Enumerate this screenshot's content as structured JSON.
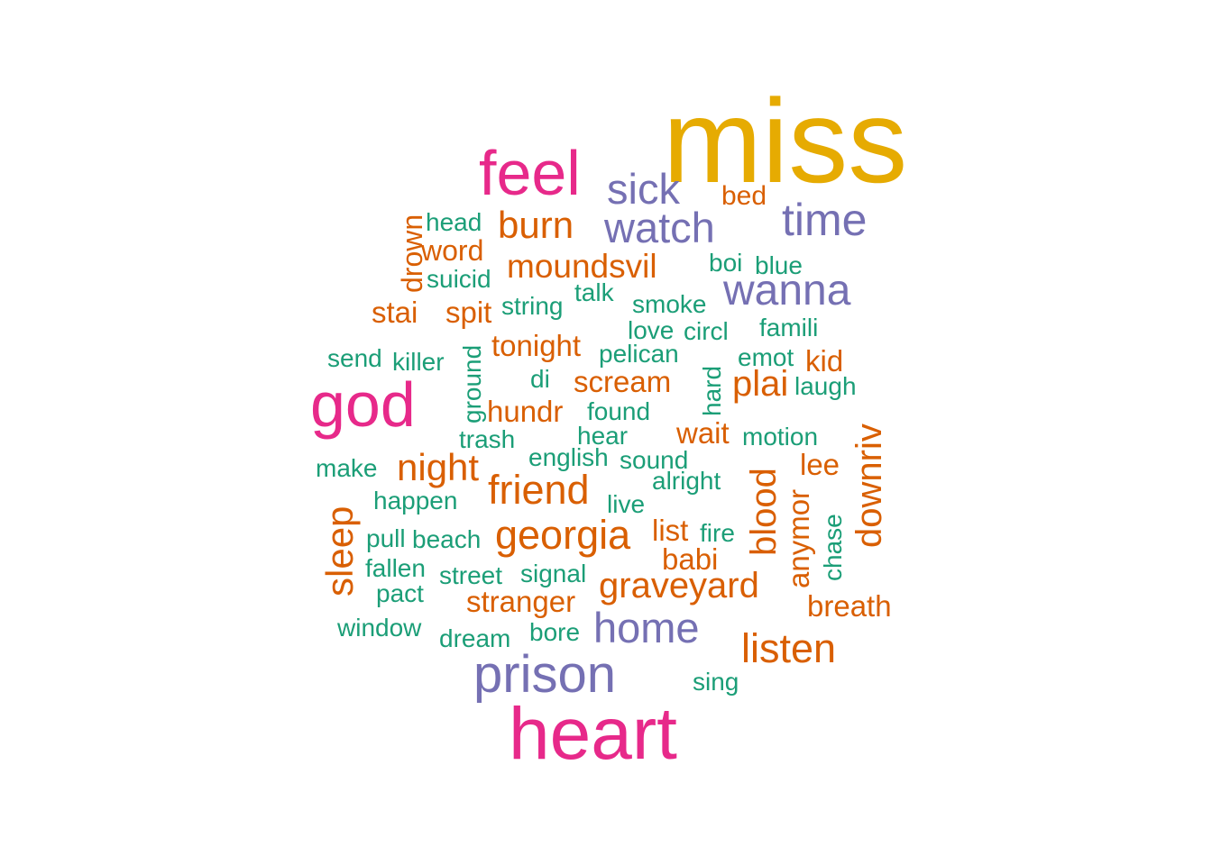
{
  "colors": {
    "gold": "#E6AB02",
    "pink": "#E7298A",
    "purple": "#7570B3",
    "orange": "#D95F02",
    "green": "#1B9E77"
  },
  "words": [
    {
      "text": "miss",
      "color": "gold"
    },
    {
      "text": "heart",
      "color": "pink"
    },
    {
      "text": "feel",
      "color": "pink"
    },
    {
      "text": "god",
      "color": "pink"
    },
    {
      "text": "prison",
      "color": "purple"
    },
    {
      "text": "home",
      "color": "purple"
    },
    {
      "text": "sick",
      "color": "purple"
    },
    {
      "text": "watch",
      "color": "purple"
    },
    {
      "text": "time",
      "color": "purple"
    },
    {
      "text": "wanna",
      "color": "purple"
    },
    {
      "text": "bed",
      "color": "orange"
    },
    {
      "text": "burn",
      "color": "orange"
    },
    {
      "text": "moundsvil",
      "color": "orange"
    },
    {
      "text": "drown",
      "color": "orange"
    },
    {
      "text": "word",
      "color": "orange"
    },
    {
      "text": "stai",
      "color": "orange"
    },
    {
      "text": "spit",
      "color": "orange"
    },
    {
      "text": "tonight",
      "color": "orange"
    },
    {
      "text": "scream",
      "color": "orange"
    },
    {
      "text": "hundr",
      "color": "orange"
    },
    {
      "text": "plai",
      "color": "orange"
    },
    {
      "text": "kid",
      "color": "orange"
    },
    {
      "text": "wait",
      "color": "orange"
    },
    {
      "text": "night",
      "color": "orange"
    },
    {
      "text": "friend",
      "color": "orange"
    },
    {
      "text": "georgia",
      "color": "orange"
    },
    {
      "text": "sleep",
      "color": "orange"
    },
    {
      "text": "blood",
      "color": "orange"
    },
    {
      "text": "anymor",
      "color": "orange"
    },
    {
      "text": "downriv",
      "color": "orange"
    },
    {
      "text": "lee",
      "color": "orange"
    },
    {
      "text": "list",
      "color": "orange"
    },
    {
      "text": "babi",
      "color": "orange"
    },
    {
      "text": "graveyard",
      "color": "orange"
    },
    {
      "text": "stranger",
      "color": "orange"
    },
    {
      "text": "breath",
      "color": "orange"
    },
    {
      "text": "listen",
      "color": "orange"
    },
    {
      "text": "head",
      "color": "green"
    },
    {
      "text": "suicid",
      "color": "green"
    },
    {
      "text": "boi",
      "color": "green"
    },
    {
      "text": "blue",
      "color": "green"
    },
    {
      "text": "talk",
      "color": "green"
    },
    {
      "text": "string",
      "color": "green"
    },
    {
      "text": "smoke",
      "color": "green"
    },
    {
      "text": "love",
      "color": "green"
    },
    {
      "text": "circl",
      "color": "green"
    },
    {
      "text": "famili",
      "color": "green"
    },
    {
      "text": "send",
      "color": "green"
    },
    {
      "text": "killer",
      "color": "green"
    },
    {
      "text": "ground",
      "color": "green"
    },
    {
      "text": "pelican",
      "color": "green"
    },
    {
      "text": "emot",
      "color": "green"
    },
    {
      "text": "di",
      "color": "green"
    },
    {
      "text": "hard",
      "color": "green"
    },
    {
      "text": "laugh",
      "color": "green"
    },
    {
      "text": "found",
      "color": "green"
    },
    {
      "text": "hear",
      "color": "green"
    },
    {
      "text": "trash",
      "color": "green"
    },
    {
      "text": "motion",
      "color": "green"
    },
    {
      "text": "english",
      "color": "green"
    },
    {
      "text": "sound",
      "color": "green"
    },
    {
      "text": "make",
      "color": "green"
    },
    {
      "text": "alright",
      "color": "green"
    },
    {
      "text": "happen",
      "color": "green"
    },
    {
      "text": "live",
      "color": "green"
    },
    {
      "text": "pull",
      "color": "green"
    },
    {
      "text": "beach",
      "color": "green"
    },
    {
      "text": "fire",
      "color": "green"
    },
    {
      "text": "chase",
      "color": "green"
    },
    {
      "text": "fallen",
      "color": "green"
    },
    {
      "text": "street",
      "color": "green"
    },
    {
      "text": "signal",
      "color": "green"
    },
    {
      "text": "pact",
      "color": "green"
    },
    {
      "text": "window",
      "color": "green"
    },
    {
      "text": "dream",
      "color": "green"
    },
    {
      "text": "bore",
      "color": "green"
    },
    {
      "text": "sing",
      "color": "green"
    }
  ]
}
